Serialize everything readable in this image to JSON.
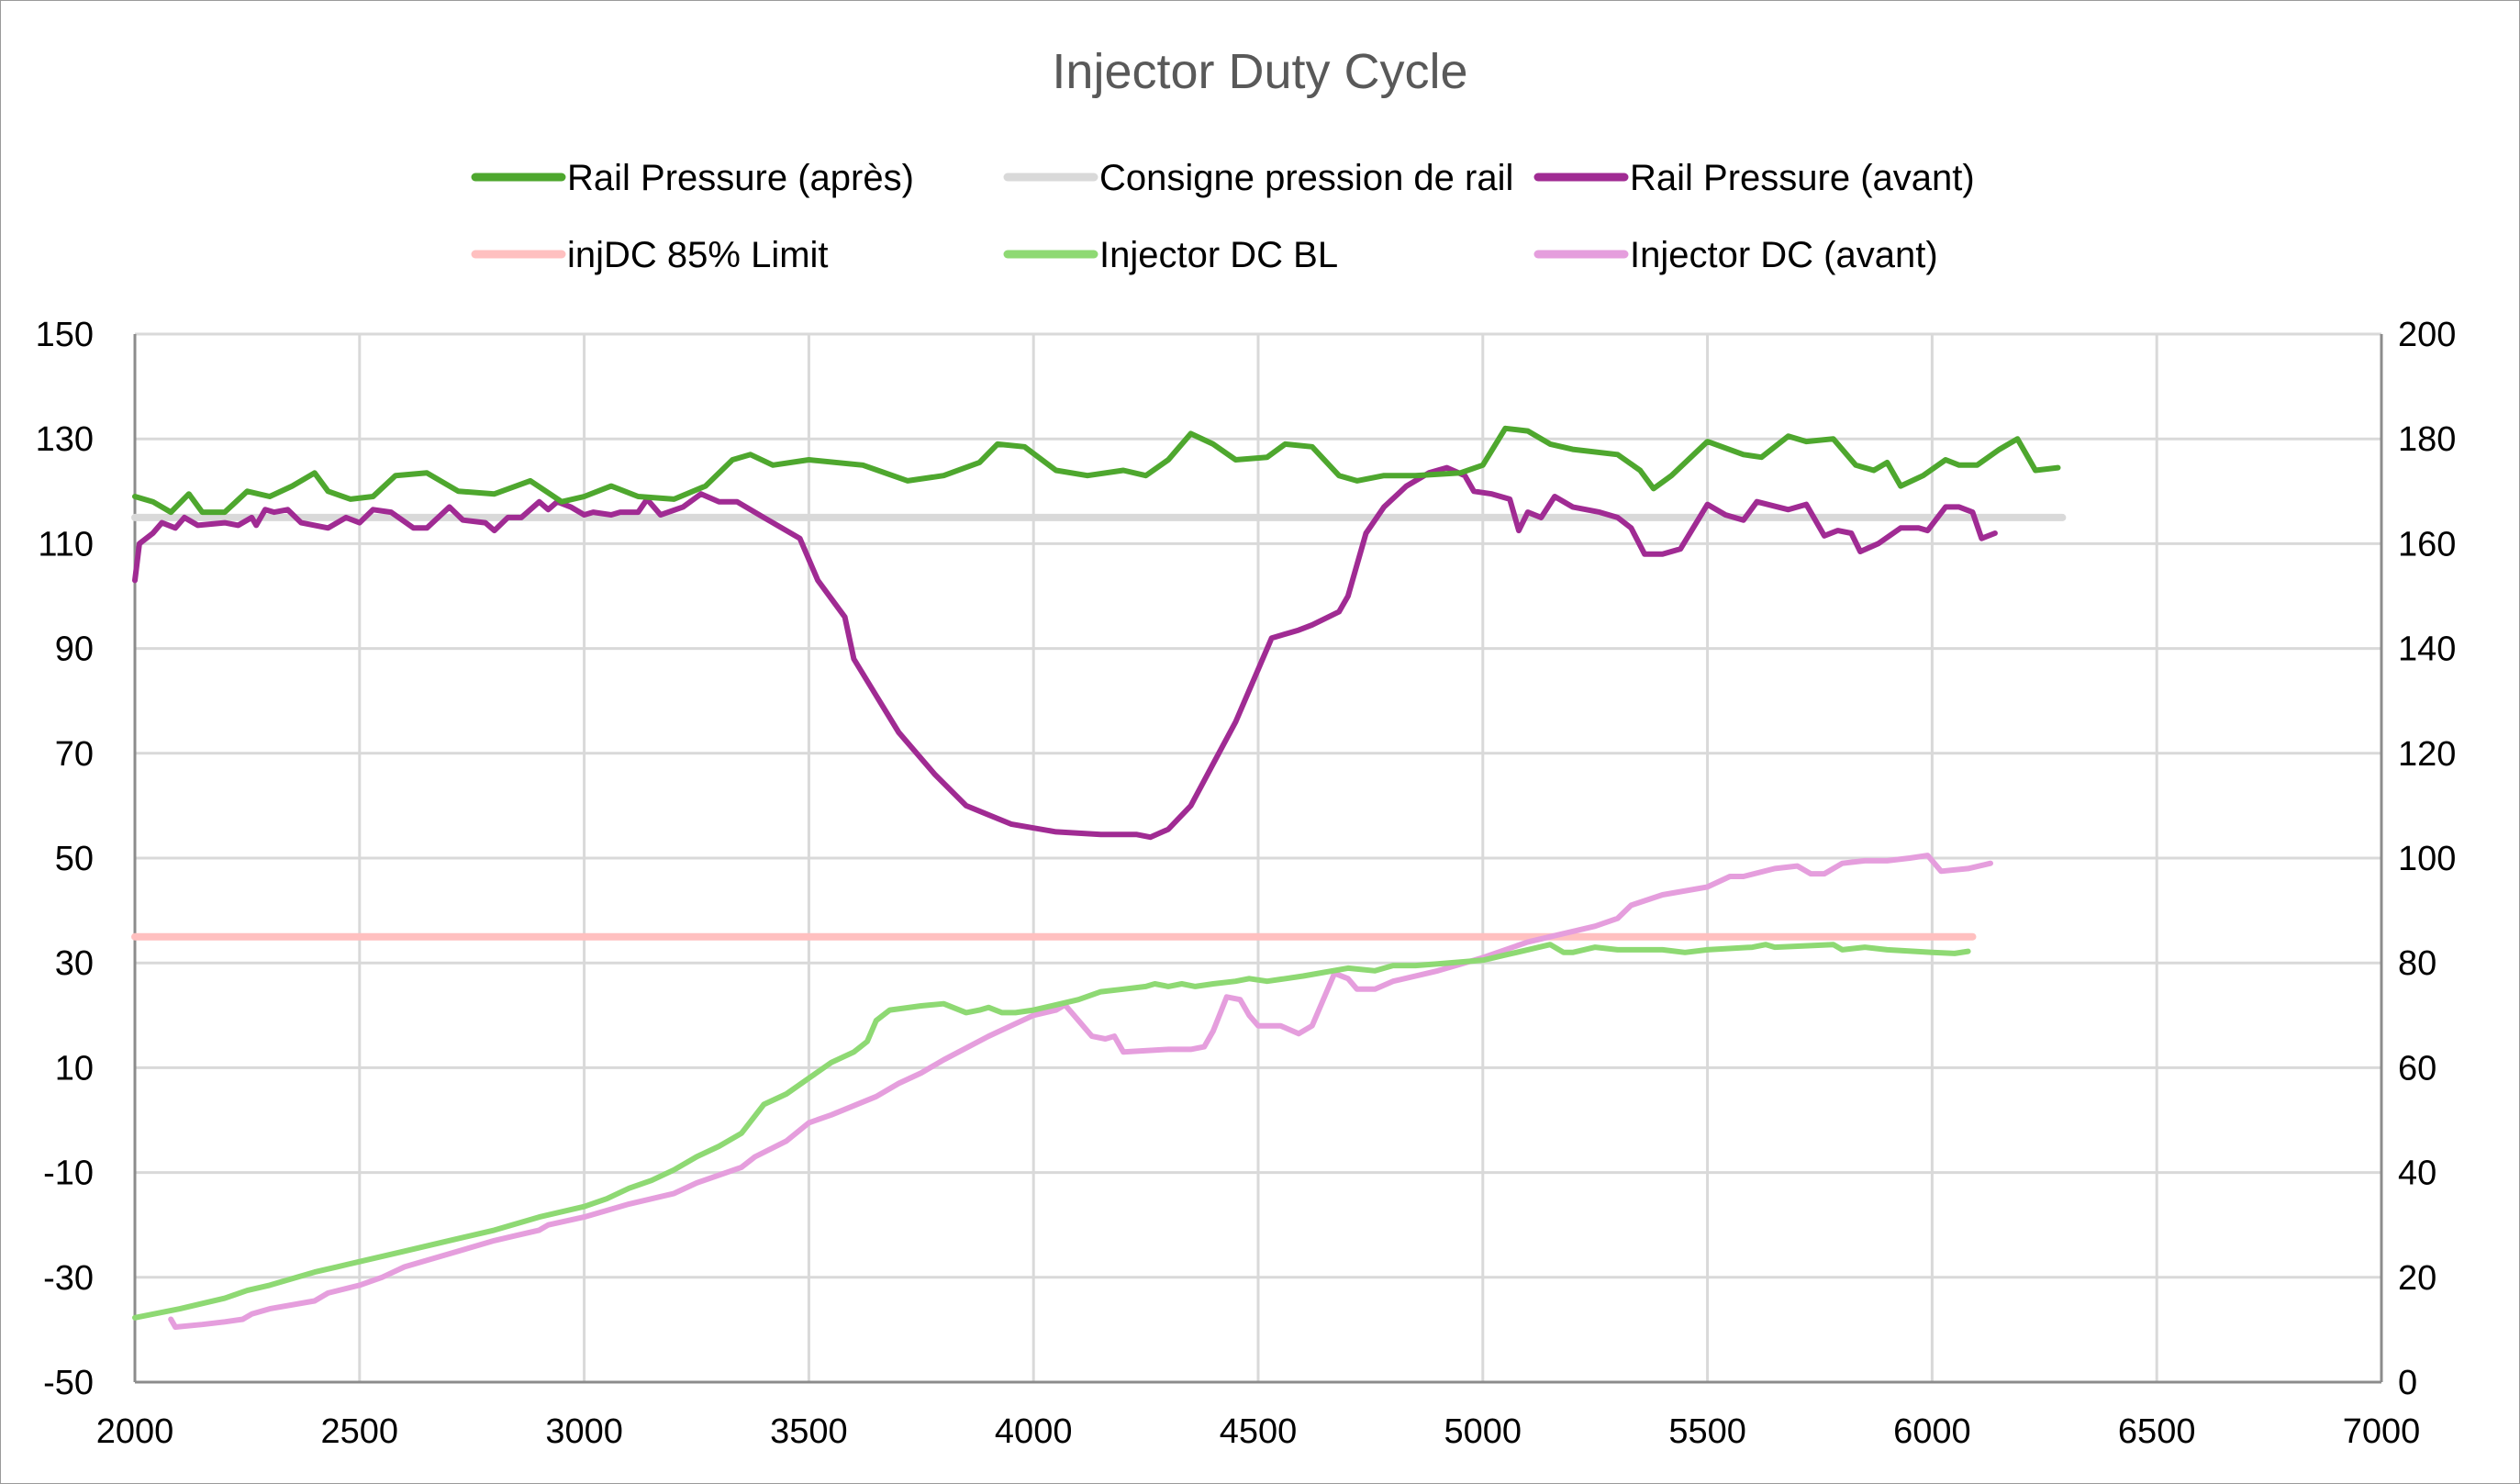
{
  "chart_data": {
    "type": "line",
    "title": "Injector Duty Cycle",
    "xlabel": "",
    "ylabel": "",
    "y2label": "",
    "xlim": [
      2000,
      7000
    ],
    "ylim": [
      -50,
      150
    ],
    "y2lim": [
      0,
      200
    ],
    "x_ticks": [
      "2000",
      "2500",
      "3000",
      "3500",
      "4000",
      "4500",
      "5000",
      "5500",
      "6000",
      "6500",
      "7000"
    ],
    "y_ticks": [
      "150",
      "130",
      "110",
      "90",
      "70",
      "50",
      "30",
      "10",
      "-10",
      "-30",
      "-50"
    ],
    "y2_ticks": [
      "200",
      "180",
      "160",
      "140",
      "120",
      "100",
      "80",
      "60",
      "40",
      "20",
      "0"
    ],
    "grid": true,
    "legend_position": "top",
    "series": [
      {
        "name": "Rail Pressure (après)",
        "axis": "left",
        "color": "#4EA72E",
        "x": [
          2000,
          2040,
          2080,
          2120,
          2150,
          2200,
          2250,
          2300,
          2350,
          2400,
          2430,
          2480,
          2530,
          2580,
          2650,
          2720,
          2800,
          2880,
          2950,
          3000,
          3060,
          3120,
          3200,
          3270,
          3330,
          3370,
          3420,
          3500,
          3620,
          3720,
          3800,
          3880,
          3920,
          3980,
          4050,
          4120,
          4200,
          4250,
          4300,
          4350,
          4400,
          4450,
          4520,
          4560,
          4620,
          4680,
          4720,
          4780,
          4850,
          4950,
          5000,
          5050,
          5100,
          5150,
          5200,
          5300,
          5350,
          5380,
          5420,
          5500,
          5580,
          5620,
          5680,
          5720,
          5780,
          5830,
          5870,
          5900,
          5930,
          5980,
          6030,
          6060,
          6100,
          6150,
          6190,
          6230,
          6280
        ],
        "y": [
          119,
          118,
          116,
          119.5,
          116,
          116,
          120,
          119,
          121,
          123.5,
          120,
          118.5,
          119,
          123,
          123.5,
          120,
          119.5,
          122,
          118,
          119,
          121,
          119,
          118.5,
          121,
          126,
          127,
          125,
          126,
          125,
          122,
          123,
          125.5,
          129,
          128.5,
          124,
          123,
          124,
          123,
          126,
          131,
          129,
          126,
          126.5,
          129,
          128.5,
          123,
          122,
          123,
          123,
          123.5,
          125,
          132,
          131.5,
          129,
          128,
          127,
          124,
          120.5,
          123,
          129.5,
          127,
          126.5,
          130.5,
          129.5,
          130,
          125,
          124,
          125.5,
          121,
          123,
          126,
          125,
          125,
          128,
          130,
          124,
          124.5
        ]
      },
      {
        "name": "Consigne pression de rail",
        "axis": "left",
        "color": "#D9D9D9",
        "x": [
          2000,
          6290
        ],
        "y": [
          115,
          115
        ]
      },
      {
        "name": "Rail Pressure (avant)",
        "axis": "left",
        "color": "#A02B93",
        "x": [
          2000,
          2010,
          2040,
          2060,
          2090,
          2110,
          2140,
          2200,
          2230,
          2260,
          2270,
          2290,
          2310,
          2340,
          2370,
          2430,
          2470,
          2500,
          2530,
          2570,
          2620,
          2650,
          2700,
          2730,
          2780,
          2800,
          2830,
          2860,
          2900,
          2920,
          2940,
          2970,
          3000,
          3020,
          3060,
          3080,
          3120,
          3140,
          3170,
          3220,
          3260,
          3300,
          3340,
          3400,
          3480,
          3520,
          3580,
          3600,
          3650,
          3700,
          3780,
          3850,
          3950,
          4050,
          4150,
          4230,
          4260,
          4300,
          4350,
          4400,
          4450,
          4500,
          4530,
          4570,
          4590,
          4620,
          4680,
          4700,
          4740,
          4780,
          4830,
          4880,
          4920,
          4960,
          4980,
          5020,
          5060,
          5080,
          5100,
          5130,
          5160,
          5200,
          5260,
          5300,
          5330,
          5360,
          5400,
          5440,
          5500,
          5540,
          5580,
          5610,
          5680,
          5720,
          5760,
          5790,
          5820,
          5840,
          5880,
          5930,
          5970,
          5990,
          6030,
          6060,
          6090,
          6110,
          6140
        ],
        "y": [
          103,
          110,
          112,
          114,
          113,
          115,
          113.5,
          114,
          113.5,
          115,
          113.5,
          116.5,
          116,
          116.5,
          114,
          113,
          115,
          114,
          116.5,
          116,
          113,
          113,
          117,
          114.5,
          114,
          112.5,
          115,
          115,
          118,
          116.5,
          118,
          117,
          115.5,
          116,
          115.5,
          116,
          116,
          118.5,
          115.5,
          117,
          119.5,
          118,
          118,
          115,
          111,
          103,
          96,
          88,
          81,
          74,
          66,
          60,
          56.5,
          55,
          54.5,
          54.5,
          54,
          55.5,
          60,
          68,
          76,
          86,
          92,
          93,
          93.5,
          94.5,
          97,
          100,
          112,
          117,
          121,
          123.5,
          124.5,
          123,
          120,
          119.5,
          118.5,
          112.5,
          116,
          115,
          119,
          117,
          116,
          115,
          113,
          108,
          108,
          109,
          117.5,
          115.5,
          114.5,
          118,
          116.5,
          117.5,
          111.5,
          112.5,
          112,
          108.5,
          110,
          113,
          113,
          112.5,
          117,
          117,
          116,
          111,
          112
        ]
      },
      {
        "name": "injDC 85% Limit",
        "axis": "right",
        "color": "#FFC0C0",
        "x": [
          2000,
          6090
        ],
        "y": [
          85,
          85
        ]
      },
      {
        "name": "Injector DC BL",
        "axis": "right",
        "color": "#8ED973",
        "x": [
          2000,
          2100,
          2150,
          2200,
          2250,
          2300,
          2400,
          2450,
          2500,
          2600,
          2700,
          2800,
          2900,
          3000,
          3050,
          3100,
          3150,
          3200,
          3250,
          3300,
          3350,
          3400,
          3450,
          3500,
          3550,
          3600,
          3630,
          3650,
          3680,
          3750,
          3800,
          3850,
          3880,
          3900,
          3930,
          3960,
          4000,
          4050,
          4100,
          4150,
          4200,
          4250,
          4270,
          4300,
          4330,
          4360,
          4400,
          4450,
          4480,
          4520,
          4600,
          4700,
          4760,
          4800,
          4850,
          4900,
          5000,
          5050,
          5100,
          5150,
          5180,
          5200,
          5250,
          5300,
          5400,
          5450,
          5500,
          5600,
          5630,
          5650,
          5780,
          5800,
          5850,
          5900,
          6000,
          6050,
          6080
        ],
        "y": [
          12.3,
          14,
          15,
          16,
          17.5,
          18.5,
          21,
          22,
          23,
          25,
          27,
          29,
          31.5,
          33.5,
          35,
          37,
          38.5,
          40.5,
          43,
          45,
          47.5,
          53,
          55,
          58,
          61,
          63,
          65,
          69,
          71,
          71.8,
          72.2,
          70.5,
          71,
          71.5,
          70.5,
          70.5,
          71,
          72,
          73,
          74.5,
          75,
          75.5,
          76,
          75.5,
          76,
          75.5,
          76,
          76.5,
          77,
          76.5,
          77.5,
          79,
          78.5,
          79.5,
          79.5,
          79.8,
          80.5,
          81.5,
          82.5,
          83.5,
          82,
          82,
          83,
          82.5,
          82.5,
          82,
          82.5,
          83,
          83.5,
          83,
          83.5,
          82.5,
          83,
          82.5,
          82,
          81.8,
          82.2
        ]
      },
      {
        "name": "Injector DC (avant)",
        "axis": "right",
        "color": "#E59EDD",
        "x": [
          2080,
          2090,
          2150,
          2200,
          2240,
          2260,
          2300,
          2400,
          2430,
          2500,
          2550,
          2600,
          2700,
          2800,
          2850,
          2900,
          2920,
          3000,
          3100,
          3200,
          3250,
          3350,
          3380,
          3450,
          3500,
          3550,
          3650,
          3700,
          3750,
          3800,
          3900,
          3950,
          4000,
          4050,
          4070,
          4100,
          4130,
          4160,
          4180,
          4200,
          4300,
          4350,
          4380,
          4400,
          4430,
          4460,
          4480,
          4500,
          4550,
          4590,
          4620,
          4650,
          4670,
          4700,
          4720,
          4760,
          4800,
          4900,
          5000,
          5100,
          5200,
          5250,
          5300,
          5330,
          5400,
          5500,
          5550,
          5580,
          5650,
          5700,
          5730,
          5760,
          5800,
          5850,
          5900,
          5950,
          5990,
          6020,
          6080,
          6130
        ],
        "y": [
          12,
          10.5,
          11,
          11.5,
          12,
          13,
          14,
          15.5,
          17,
          18.5,
          20,
          22,
          24.5,
          27,
          28,
          29,
          30,
          31.5,
          34,
          36,
          38,
          41,
          43,
          46,
          49.5,
          51,
          54.5,
          57,
          59,
          61.5,
          66,
          68,
          70,
          71,
          72,
          69,
          66,
          65.5,
          66,
          63,
          63.5,
          63.5,
          64,
          67,
          73.5,
          73,
          70,
          68,
          68,
          66.5,
          68,
          74,
          78,
          77,
          75,
          75,
          76.5,
          78.5,
          81,
          84,
          86,
          87,
          88.5,
          91,
          93,
          94.5,
          96.5,
          96.5,
          98,
          98.5,
          97,
          97,
          99,
          99.5,
          99.5,
          100,
          100.5,
          97.5,
          98,
          99
        ]
      }
    ]
  }
}
